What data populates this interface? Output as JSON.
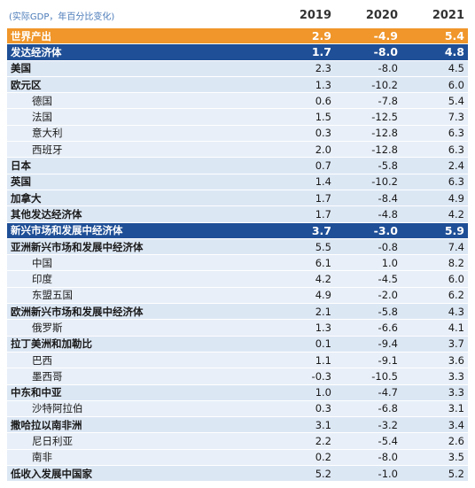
{
  "table": {
    "note": "(实际GDP，年百分比变化)",
    "columns": [
      "2019",
      "2020",
      "2021"
    ],
    "rows": [
      {
        "label": "世界产出",
        "values": [
          "2.9",
          "-4.9",
          "5.4"
        ],
        "highlight": "#f0962a"
      },
      {
        "label": "发达经济体",
        "values": [
          "1.7",
          "-8.0",
          "4.8"
        ],
        "highlight": "#1f4f96"
      },
      {
        "label": "美国",
        "values": [
          "2.3",
          "-8.0",
          "4.5"
        ]
      },
      {
        "label": "欧元区",
        "values": [
          "1.3",
          "-10.2",
          "6.0"
        ]
      },
      {
        "label": "德国",
        "values": [
          "0.6",
          "-7.8",
          "5.4"
        ],
        "indent": true
      },
      {
        "label": "法国",
        "values": [
          "1.5",
          "-12.5",
          "7.3"
        ],
        "indent": true
      },
      {
        "label": "意大利",
        "values": [
          "0.3",
          "-12.8",
          "6.3"
        ],
        "indent": true
      },
      {
        "label": "西班牙",
        "values": [
          "2.0",
          "-12.8",
          "6.3"
        ],
        "indent": true
      },
      {
        "label": "日本",
        "values": [
          "0.7",
          "-5.8",
          "2.4"
        ]
      },
      {
        "label": "英国",
        "values": [
          "1.4",
          "-10.2",
          "6.3"
        ]
      },
      {
        "label": "加拿大",
        "values": [
          "1.7",
          "-8.4",
          "4.9"
        ]
      },
      {
        "label": "其他发达经济体",
        "values": [
          "1.7",
          "-4.8",
          "4.2"
        ]
      },
      {
        "label": "新兴市场和发展中经济体",
        "values": [
          "3.7",
          "-3.0",
          "5.9"
        ],
        "highlight": "#1f4f96"
      },
      {
        "label": "亚洲新兴市场和发展中经济体",
        "values": [
          "5.5",
          "-0.8",
          "7.4"
        ]
      },
      {
        "label": "中国",
        "values": [
          "6.1",
          "1.0",
          "8.2"
        ],
        "indent": true
      },
      {
        "label": "印度",
        "values": [
          "4.2",
          "-4.5",
          "6.0"
        ],
        "indent": true
      },
      {
        "label": "东盟五国",
        "values": [
          "4.9",
          "-2.0",
          "6.2"
        ],
        "indent": true
      },
      {
        "label": "欧洲新兴市场和发展中经济体",
        "values": [
          "2.1",
          "-5.8",
          "4.3"
        ]
      },
      {
        "label": "俄罗斯",
        "values": [
          "1.3",
          "-6.6",
          "4.1"
        ],
        "indent": true
      },
      {
        "label": "拉丁美洲和加勒比",
        "values": [
          "0.1",
          "-9.4",
          "3.7"
        ]
      },
      {
        "label": "巴西",
        "values": [
          "1.1",
          "-9.1",
          "3.6"
        ],
        "indent": true
      },
      {
        "label": "墨西哥",
        "values": [
          "-0.3",
          "-10.5",
          "3.3"
        ],
        "indent": true
      },
      {
        "label": "中东和中亚",
        "values": [
          "1.0",
          "-4.7",
          "3.3"
        ]
      },
      {
        "label": "沙特阿拉伯",
        "values": [
          "0.3",
          "-6.8",
          "3.1"
        ],
        "indent": true
      },
      {
        "label": "撒哈拉以南非洲",
        "values": [
          "3.1",
          "-3.2",
          "3.4"
        ]
      },
      {
        "label": "尼日利亚",
        "values": [
          "2.2",
          "-5.4",
          "2.6"
        ],
        "indent": true
      },
      {
        "label": "南非",
        "values": [
          "0.2",
          "-8.0",
          "3.5"
        ],
        "indent": true
      },
      {
        "label": "低收入发展中国家",
        "values": [
          "5.2",
          "-1.0",
          "5.2"
        ]
      }
    ]
  }
}
